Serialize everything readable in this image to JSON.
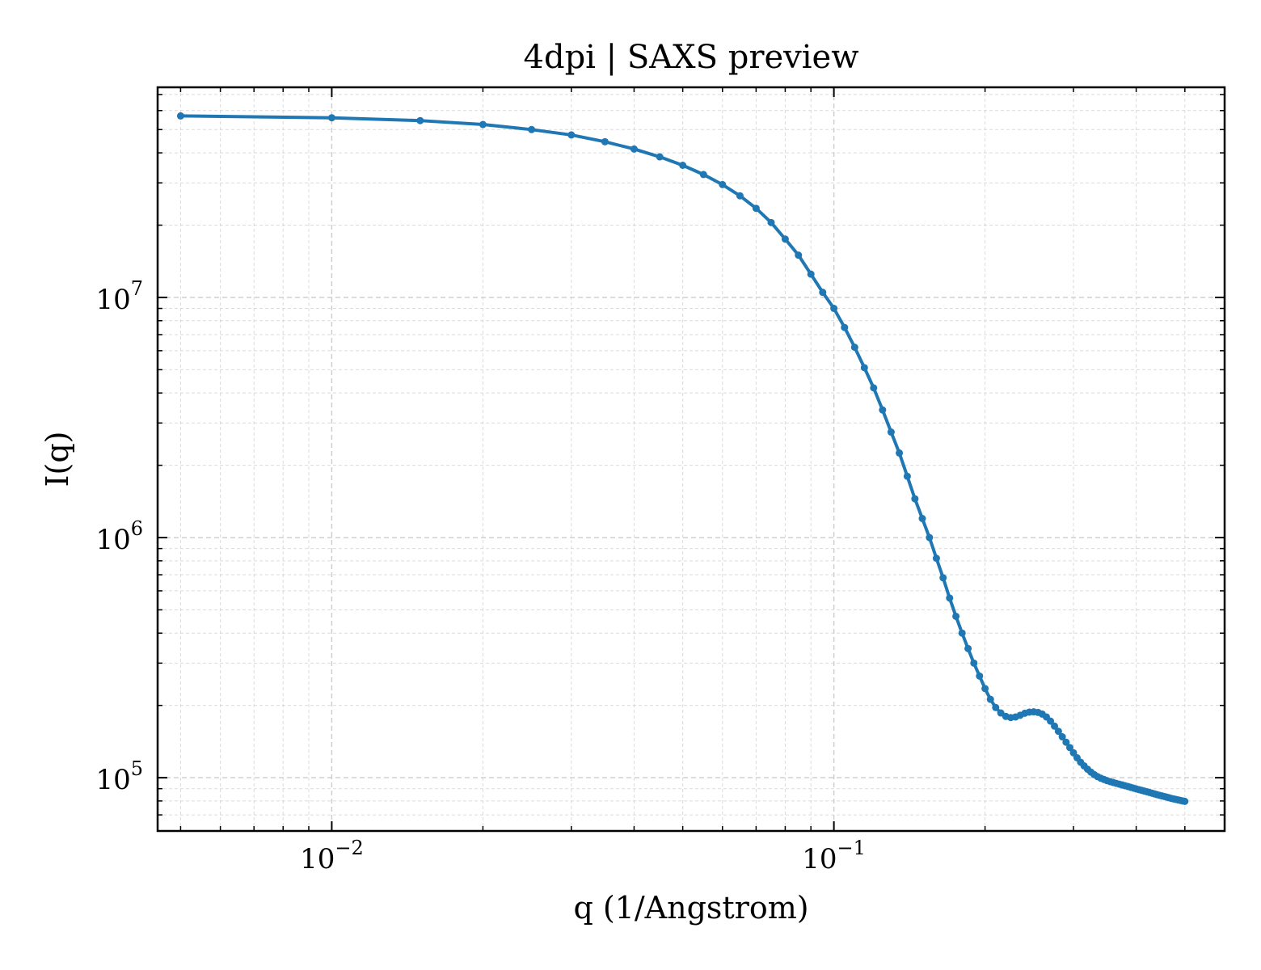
{
  "chart_data": {
    "type": "line",
    "title": "4dpi | SAXS preview",
    "xlabel": "q (1/Angstrom)",
    "ylabel": "I(q)",
    "xscale": "log",
    "yscale": "log",
    "xlim": [
      0.0045,
      0.6
    ],
    "ylim": [
      60000,
      75000000
    ],
    "grid": true,
    "legend": "none",
    "x_ticks": [
      {
        "value": 0.01,
        "base": "10",
        "exp": "−2"
      },
      {
        "value": 0.1,
        "base": "10",
        "exp": "−1"
      }
    ],
    "y_ticks": [
      {
        "value": 100000,
        "base": "10",
        "exp": "5"
      },
      {
        "value": 1000000,
        "base": "10",
        "exp": "6"
      },
      {
        "value": 10000000,
        "base": "10",
        "exp": "7"
      }
    ],
    "colors": {
      "series": "#1f77b4",
      "grid": "#cccccc",
      "axis": "#000000"
    },
    "series": [
      {
        "x": [
          0.005,
          0.01,
          0.015,
          0.02,
          0.025,
          0.03,
          0.035,
          0.04,
          0.045,
          0.05,
          0.055,
          0.06,
          0.065,
          0.07,
          0.075,
          0.08,
          0.085,
          0.09,
          0.095,
          0.1,
          0.105,
          0.11,
          0.115,
          0.12,
          0.125,
          0.13,
          0.135,
          0.14,
          0.145,
          0.15,
          0.155,
          0.16,
          0.165,
          0.17,
          0.175,
          0.18,
          0.185,
          0.19,
          0.195,
          0.2,
          0.205,
          0.21,
          0.215,
          0.22,
          0.225,
          0.23,
          0.235,
          0.24,
          0.245,
          0.25,
          0.255,
          0.26,
          0.265,
          0.27,
          0.275,
          0.28,
          0.285,
          0.29,
          0.295,
          0.3,
          0.305,
          0.31,
          0.315,
          0.32,
          0.325,
          0.33,
          0.335,
          0.34,
          0.345,
          0.35,
          0.355,
          0.36,
          0.365,
          0.37,
          0.375,
          0.38,
          0.385,
          0.39,
          0.395,
          0.4,
          0.405,
          0.41,
          0.415,
          0.42,
          0.425,
          0.43,
          0.435,
          0.44,
          0.445,
          0.45,
          0.455,
          0.46,
          0.465,
          0.47,
          0.475,
          0.48,
          0.485,
          0.49,
          0.495,
          0.5
        ],
        "y": [
          57000000,
          56000000,
          54500000,
          52500000,
          50000000,
          47500000,
          44500000,
          41500000,
          38500000,
          35500000,
          32500000,
          29500000,
          26500000,
          23500000,
          20500000,
          17500000,
          15000000,
          12500000,
          10500000,
          9000000,
          7500000,
          6200000,
          5100000,
          4200000,
          3400000,
          2750000,
          2250000,
          1800000,
          1450000,
          1200000,
          1000000,
          820000,
          680000,
          560000,
          470000,
          400000,
          345000,
          300000,
          265000,
          235000,
          212000,
          196000,
          186000,
          180000,
          178000,
          179000,
          182000,
          185500,
          187500,
          188000,
          187000,
          184000,
          179000,
          172000,
          164000,
          156000,
          148000,
          140500,
          133500,
          127000,
          121000,
          116000,
          112000,
          108500,
          105500,
          103000,
          101000,
          99500,
          98300,
          97200,
          96300,
          95500,
          94700,
          94000,
          93300,
          92600,
          91900,
          91200,
          90500,
          89800,
          89200,
          88600,
          88000,
          87400,
          86800,
          86200,
          85600,
          85000,
          84500,
          84000,
          83500,
          83000,
          82500,
          82000,
          81600,
          81200,
          80800,
          80400,
          80000,
          79700
        ]
      }
    ]
  }
}
